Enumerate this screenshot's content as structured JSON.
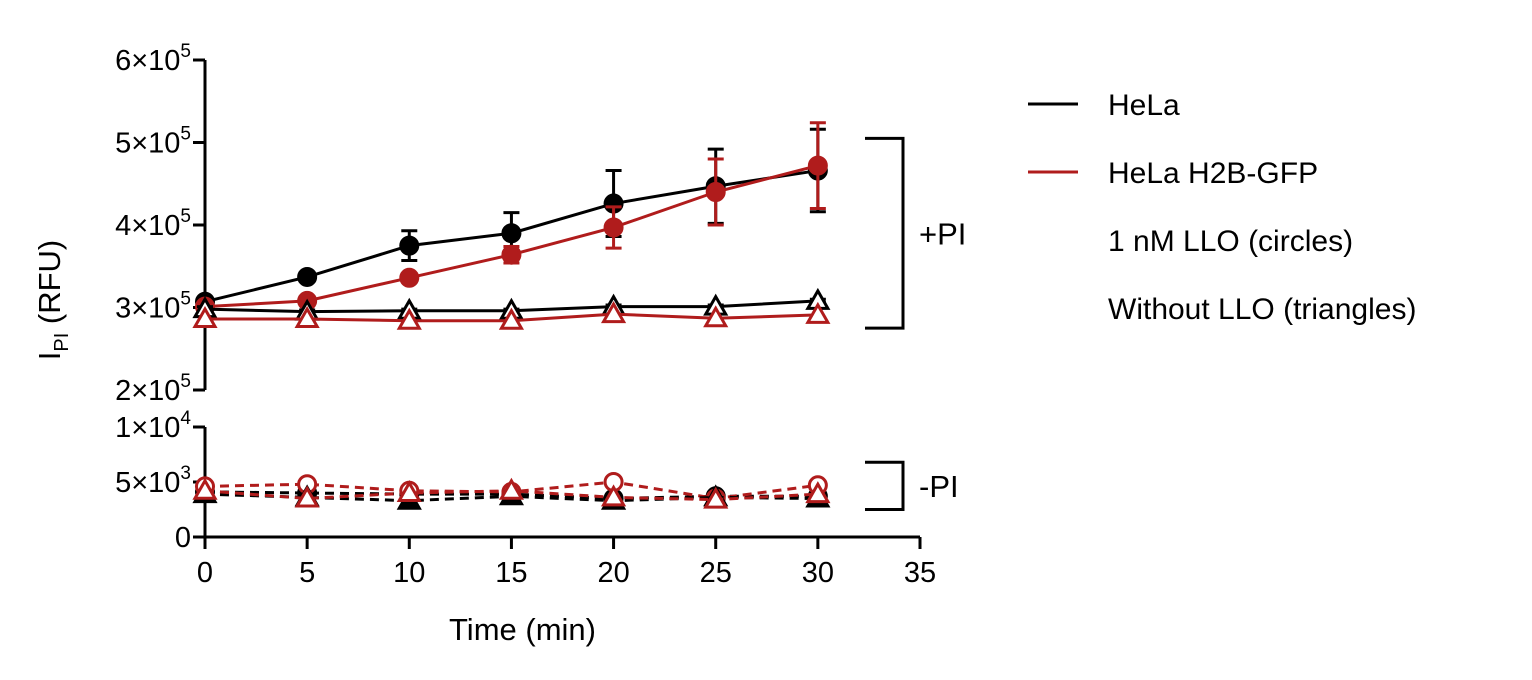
{
  "chart_data": {
    "type": "line",
    "xlabel": "Time (min)",
    "ylabel": {
      "main": "I",
      "subscript": "PI",
      "unit": "(RFU)"
    },
    "x": [
      0,
      5,
      10,
      15,
      20,
      25,
      30
    ],
    "xlim": [
      0,
      35
    ],
    "xticks": [
      "0",
      "5",
      "10",
      "15",
      "20",
      "25",
      "30",
      "35"
    ],
    "y_upper_segment": {
      "ylim": [
        200000,
        600000
      ],
      "ticks": [
        {
          "value": 200000,
          "mantissa": "2",
          "exp": "5"
        },
        {
          "value": 300000,
          "mantissa": "3",
          "exp": "5"
        },
        {
          "value": 400000,
          "mantissa": "4",
          "exp": "5"
        },
        {
          "value": 500000,
          "mantissa": "5",
          "exp": "5"
        },
        {
          "value": 600000,
          "mantissa": "6",
          "exp": "5"
        }
      ]
    },
    "y_lower_segment": {
      "ylim": [
        0,
        10000
      ],
      "ticks": [
        {
          "value": 0,
          "plain": "0"
        },
        {
          "value": 5000,
          "mantissa": "5",
          "exp": "3"
        },
        {
          "value": 10000,
          "mantissa": "1",
          "exp": "4"
        }
      ]
    },
    "series": [
      {
        "name": "HeLa + 1 nM LLO",
        "color": "#000000",
        "marker": "circle-filled",
        "dash": false,
        "segment": "upper",
        "values": [
          307000,
          337000,
          375000,
          390000,
          426000,
          447000,
          466000
        ],
        "errors": [
          4000,
          5000,
          18000,
          25000,
          40000,
          45000,
          50000
        ]
      },
      {
        "name": "HeLa H2B-GFP + 1 nM LLO",
        "color": "#b01c1c",
        "marker": "circle-filled",
        "dash": false,
        "segment": "upper",
        "values": [
          301000,
          308000,
          336000,
          364000,
          397000,
          440000,
          472000
        ],
        "errors": [
          4000,
          5000,
          5000,
          10000,
          25000,
          40000,
          52000
        ]
      },
      {
        "name": "HeLa without LLO",
        "color": "#000000",
        "marker": "triangle-open",
        "dash": false,
        "segment": "upper",
        "values": [
          298000,
          295000,
          296000,
          296000,
          301000,
          301000,
          308000
        ],
        "errors": [
          3000,
          2000,
          2000,
          2000,
          2000,
          2000,
          2000
        ]
      },
      {
        "name": "HeLa H2B-GFP without LLO",
        "color": "#b01c1c",
        "marker": "triangle-open",
        "dash": false,
        "segment": "upper",
        "values": [
          286000,
          286000,
          284000,
          284000,
          292000,
          287000,
          291000
        ],
        "errors": [
          0,
          0,
          0,
          0,
          0,
          0,
          0
        ]
      },
      {
        "name": "HeLa + 1 nM LLO, -PI",
        "color": "#000000",
        "marker": "circle-filled",
        "dash": true,
        "segment": "lower",
        "values": [
          4100,
          4000,
          3900,
          3900,
          3500,
          3700,
          3700
        ],
        "errors": [
          0,
          0,
          0,
          0,
          0,
          0,
          0
        ]
      },
      {
        "name": "HeLa H2B-GFP + 1 nM LLO, -PI",
        "color": "#b01c1c",
        "marker": "circle-open",
        "dash": true,
        "segment": "lower",
        "values": [
          4600,
          4800,
          4200,
          4100,
          5000,
          3500,
          4700
        ],
        "errors": [
          0,
          0,
          0,
          0,
          0,
          0,
          0
        ]
      },
      {
        "name": "HeLa without LLO, -PI",
        "color": "#000000",
        "marker": "triangle-filled",
        "dash": true,
        "segment": "lower",
        "values": [
          3900,
          3600,
          3300,
          3700,
          3300,
          3600,
          3500
        ],
        "errors": [
          0,
          0,
          0,
          0,
          0,
          0,
          0
        ]
      },
      {
        "name": "HeLa H2B-GFP without LLO, -PI",
        "color": "#b01c1c",
        "marker": "triangle-open",
        "dash": true,
        "segment": "lower",
        "values": [
          4200,
          3500,
          4000,
          4200,
          3600,
          3400,
          3900
        ],
        "errors": [
          0,
          0,
          0,
          0,
          0,
          0,
          0
        ]
      }
    ],
    "legend": {
      "position": "right",
      "entries": [
        {
          "label": "HeLa",
          "color": "#000000"
        },
        {
          "label": "HeLa H2B-GFP",
          "color": "#b01c1c"
        }
      ],
      "notes": [
        "1 nM LLO (circles)",
        "Without LLO (triangles)"
      ]
    },
    "groups": [
      {
        "label": "+PI",
        "segment": "upper",
        "range": [
          275000,
          505000
        ]
      },
      {
        "label": "-PI",
        "segment": "lower",
        "range": [
          2500,
          6800
        ]
      }
    ]
  }
}
